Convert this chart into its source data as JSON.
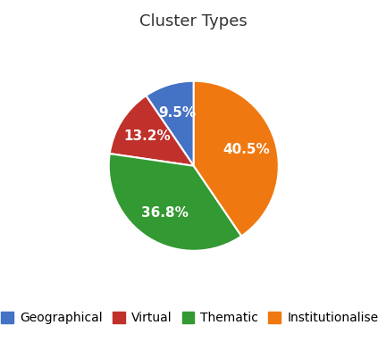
{
  "title": "Cluster Types",
  "labels": [
    "Geographical",
    "Virtual",
    "Thematic",
    "Institutionalised"
  ],
  "sizes": [
    9.5,
    13.2,
    36.8,
    40.5
  ],
  "colors": [
    "#4472C4",
    "#C0312B",
    "#339933",
    "#F07810"
  ],
  "startangle": 90,
  "background_color": "#ffffff",
  "title_fontsize": 13,
  "autopct_fontsize": 11,
  "legend_fontsize": 10
}
